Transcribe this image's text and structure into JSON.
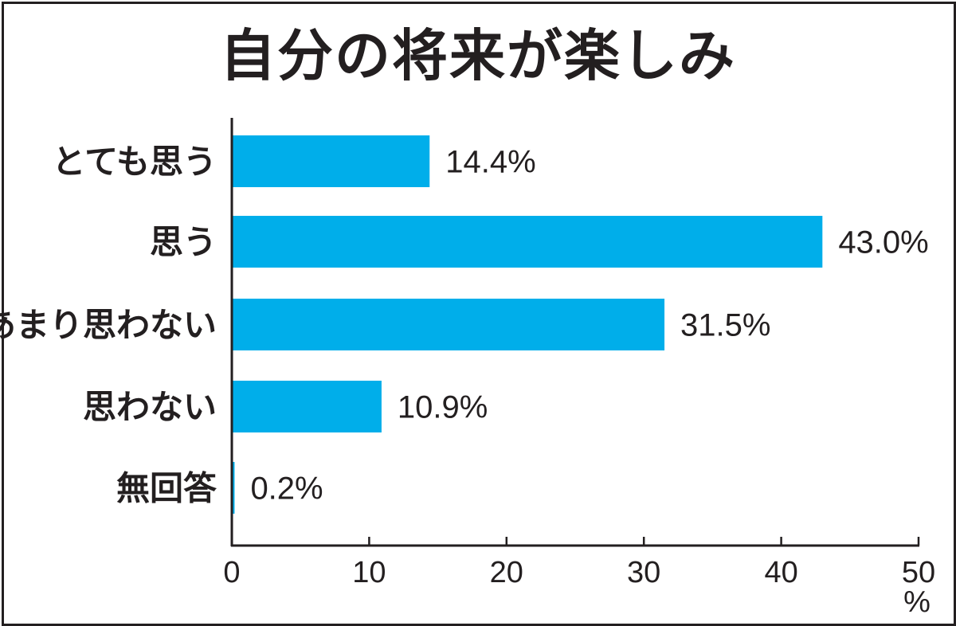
{
  "chart_data": {
    "type": "bar",
    "orientation": "horizontal",
    "title": "自分の将来が楽しみ",
    "categories": [
      "とても思う",
      "思う",
      "あまり思わない",
      "思わない",
      "無回答"
    ],
    "values": [
      14.4,
      43.0,
      31.5,
      10.9,
      0.2
    ],
    "value_labels": [
      "14.4%",
      "43.0%",
      "31.5%",
      "10.9%",
      "0.2%"
    ],
    "xlim": [
      0,
      50
    ],
    "xticks": [
      "0",
      "10",
      "20",
      "30",
      "40",
      "50"
    ],
    "xunit": "%",
    "grid": false,
    "bar_color": "#00aeea",
    "text_color": "#231f20"
  }
}
